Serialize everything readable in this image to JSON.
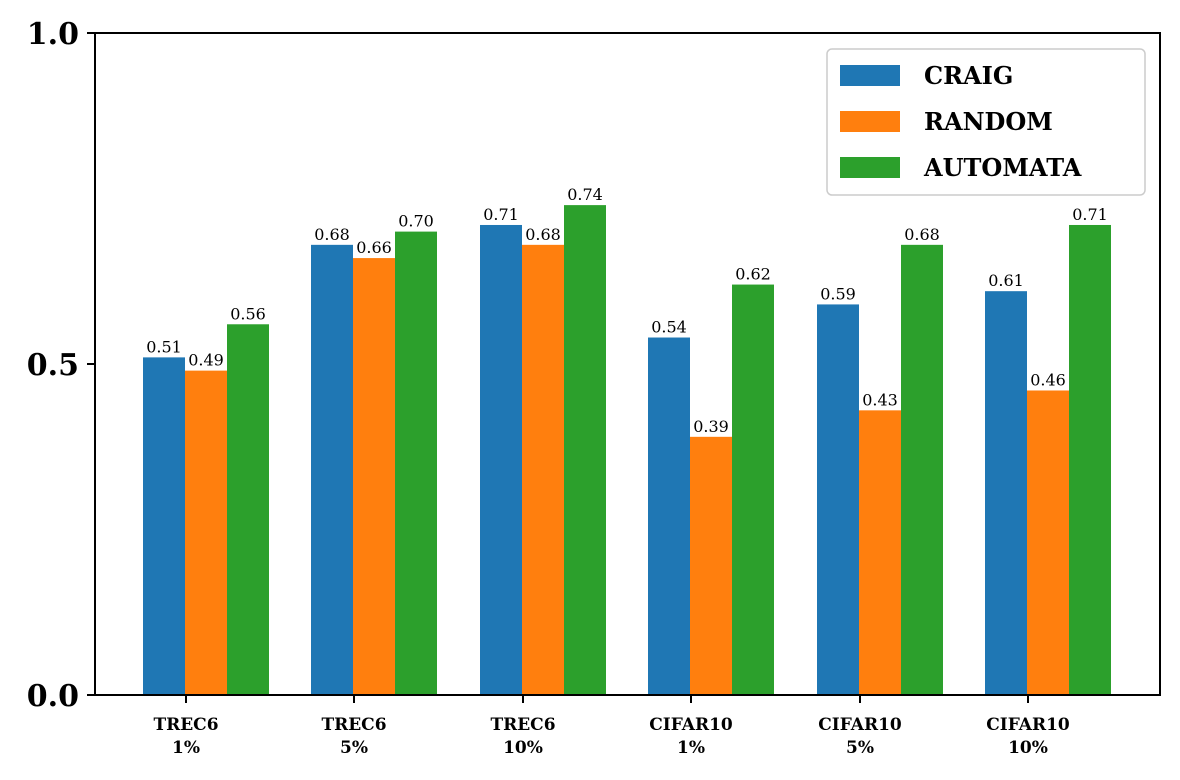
{
  "chart_data": {
    "type": "bar",
    "categories": [
      [
        "TREC6",
        "1%"
      ],
      [
        "TREC6",
        "5%"
      ],
      [
        "TREC6",
        "10%"
      ],
      [
        "CIFAR10",
        "1%"
      ],
      [
        "CIFAR10",
        "5%"
      ],
      [
        "CIFAR10",
        "10%"
      ]
    ],
    "series": [
      {
        "name": "CRAIG",
        "color": "#1f77b4",
        "values": [
          0.51,
          0.68,
          0.71,
          0.54,
          0.59,
          0.61
        ],
        "labels": [
          "0.51",
          "0.68",
          "0.71",
          "0.54",
          "0.59",
          "0.61"
        ]
      },
      {
        "name": "RANDOM",
        "color": "#ff7f0e",
        "values": [
          0.49,
          0.66,
          0.68,
          0.39,
          0.43,
          0.46
        ],
        "labels": [
          "0.49",
          "0.66",
          "0.68",
          "0.39",
          "0.43",
          "0.46"
        ]
      },
      {
        "name": "AUTOMATA",
        "color": "#2ca02c",
        "values": [
          0.56,
          0.7,
          0.74,
          0.62,
          0.68,
          0.71
        ],
        "labels": [
          "0.56",
          "0.70",
          "0.74",
          "0.62",
          "0.68",
          "0.71"
        ]
      }
    ],
    "yticks": [
      0.0,
      0.5,
      1.0
    ],
    "ytick_labels": [
      "0.0",
      "0.5",
      "1.0"
    ],
    "ylim": [
      0,
      1.0
    ],
    "title": "",
    "xlabel": "",
    "ylabel": "",
    "grid": false,
    "legend_position": "top-right"
  }
}
